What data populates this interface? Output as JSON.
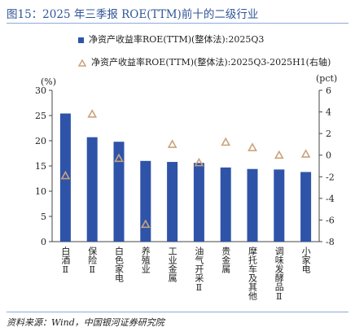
{
  "title": "图15：2025 年三季报 ROE(TTM)前十的二级行业",
  "source": "资料来源：Wind，中国银河证券研究院",
  "colors": {
    "bar": "#2e53a8",
    "marker": "#c9a37a",
    "title": "#2f5597"
  },
  "chart_data": {
    "type": "bar",
    "categories": [
      "白酒Ⅱ",
      "保险Ⅱ",
      "白色家电",
      "养殖业",
      "工业金属",
      "油气开采Ⅱ",
      "贵金属",
      "摩托车及其他",
      "调味发酵品Ⅱ",
      "小家电"
    ],
    "series": [
      {
        "name": "净资产收益率ROE(TTM)(整体法):2025Q3",
        "type": "bar",
        "axis": "left",
        "values": [
          25.4,
          20.7,
          19.8,
          16.0,
          15.8,
          15.6,
          14.7,
          14.4,
          14.3,
          13.8
        ]
      },
      {
        "name": "净资产收益率ROE(TTM)(整体法):2025Q3-2025H1(右轴)",
        "type": "scatter",
        "marker": "triangle-open",
        "axis": "right",
        "values": [
          -1.9,
          3.8,
          -0.3,
          -6.4,
          1.0,
          -0.7,
          1.2,
          0.7,
          0.0,
          0.1
        ]
      }
    ],
    "y_left": {
      "label": "(%)",
      "lim": [
        0,
        30
      ],
      "ticks": [
        0,
        5,
        10,
        15,
        20,
        25,
        30
      ]
    },
    "y_right": {
      "label": "(pct)",
      "lim": [
        -8,
        6
      ],
      "ticks": [
        -8,
        -6,
        -4,
        -2,
        0,
        2,
        4,
        6
      ]
    },
    "legend_position": "top",
    "grid": false
  }
}
